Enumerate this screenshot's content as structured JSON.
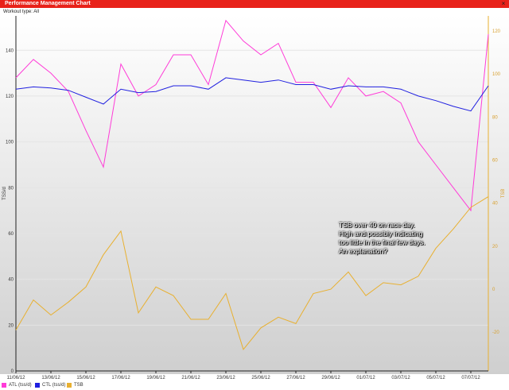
{
  "window": {
    "title": "Performance Management Chart",
    "close_glyph": "×"
  },
  "workout_type": "Workout type: All",
  "chart_data": {
    "type": "line",
    "x": [
      "11/06/12",
      "12/06/12",
      "13/06/12",
      "14/06/12",
      "15/06/12",
      "16/06/12",
      "17/06/12",
      "18/06/12",
      "19/06/12",
      "20/06/12",
      "21/06/12",
      "22/06/12",
      "23/06/12",
      "24/06/12",
      "25/06/12",
      "26/06/12",
      "27/06/12",
      "28/06/12",
      "29/06/12",
      "30/06/12",
      "01/07/12",
      "02/07/12",
      "03/07/12",
      "04/07/12",
      "05/07/12",
      "06/07/12",
      "07/07/12",
      "08/07/12"
    ],
    "x_ticks": [
      "11/06/12",
      "13/06/12",
      "15/06/12",
      "17/06/12",
      "19/06/12",
      "21/06/12",
      "23/06/12",
      "25/06/12",
      "27/06/12",
      "29/06/12",
      "01/07/12",
      "03/07/12",
      "05/07/12",
      "07/07/12"
    ],
    "ylabel": "TSS/d",
    "ylim": [
      0,
      155
    ],
    "y_ticks": [
      0,
      20,
      40,
      60,
      80,
      100,
      120,
      140
    ],
    "y2label": "TSB",
    "y2lim": [
      -38,
      127
    ],
    "y2_ticks": [
      -20,
      0,
      20,
      40,
      60,
      80,
      100,
      120
    ],
    "series": [
      {
        "name": "ATL (tss/d)",
        "axis": "left",
        "color": "#ff3bd8",
        "values": [
          128,
          136,
          130,
          122,
          105,
          89,
          134,
          120,
          125,
          138,
          138,
          125,
          153,
          144,
          138,
          143,
          126,
          126,
          115,
          128,
          120,
          122,
          117,
          100,
          90,
          80,
          70,
          147
        ]
      },
      {
        "name": "CTL (tss/d)",
        "axis": "left",
        "color": "#2020e0",
        "values": [
          123,
          124,
          123.5,
          122.5,
          119.5,
          116.5,
          123,
          121.5,
          122,
          124.5,
          124.5,
          123,
          128,
          127,
          126,
          127,
          125,
          125,
          123,
          124.5,
          124,
          124,
          123,
          120,
          118,
          115.5,
          113.5,
          124.5
        ]
      },
      {
        "name": "TSB",
        "axis": "right",
        "color": "#e8b030",
        "values": [
          -19,
          -5,
          -12,
          -6,
          1,
          16,
          27,
          -11,
          1,
          -3,
          -14,
          -14,
          -2,
          -28,
          -18,
          -13,
          -16,
          -2,
          0,
          8,
          -3,
          3,
          2,
          6,
          19,
          28,
          38,
          43
        ]
      }
    ],
    "annotation": "TSB over 40 on race day.\nHigh and possibly indicating\ntoo little in the final few days.\nAn explanation?",
    "legend_position": "bottom-left",
    "grid": true
  },
  "legend": [
    {
      "label": "ATL (tss/d)",
      "color": "#ff3bd8"
    },
    {
      "label": "CTL (tss/d)",
      "color": "#2020e0"
    },
    {
      "label": "TSB",
      "color": "#e8b030"
    }
  ]
}
